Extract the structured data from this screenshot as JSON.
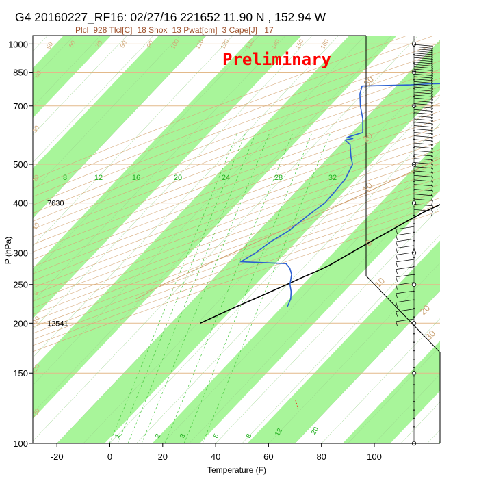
{
  "chart_data": {
    "type": "skew-t",
    "title": "G4 20160227_RF16: 02/27/16 221652  11.90 N , 152.94 W",
    "subtitle": "Plcl=928 Tlcl[C]=18 Shox=13 Pwat[cm]=3 Cape[J]= 17",
    "watermark": "Preliminary",
    "xlabel": "Temperature (F)",
    "ylabel": "P (hPa)",
    "x_ticks": [
      -20,
      0,
      20,
      40,
      60,
      80,
      100
    ],
    "x_tick_labels": [
      "-20",
      "0",
      "20",
      "40",
      "60",
      "80",
      "100"
    ],
    "xlim": [
      -28,
      105
    ],
    "y_ticks": [
      100,
      150,
      200,
      250,
      300,
      400,
      500,
      700,
      850,
      1000
    ],
    "y_tick_labels": [
      "100",
      "150",
      "200",
      "250",
      "300",
      "400",
      "500",
      "700",
      "850",
      "1000"
    ],
    "ylim": [
      1050,
      100
    ],
    "y_scale": "log",
    "height_annotations": [
      {
        "pressure": 200,
        "label": "12541"
      },
      {
        "pressure": 400,
        "label": "7630"
      }
    ],
    "green_labels": [
      "8",
      "12",
      "16",
      "20",
      "24",
      "28",
      "32"
    ],
    "mixing_ratio_labels": [
      "1",
      "2",
      "3",
      "5",
      "8",
      "12",
      "20"
    ],
    "right_axis_labels": [
      "30",
      "20",
      "10",
      "0",
      "10",
      "20",
      "30"
    ],
    "dry_adiabat_labels": [
      "50",
      "60",
      "70",
      "80",
      "90",
      "100",
      "110",
      "120",
      "130",
      "140",
      "150",
      "160",
      "40",
      "30",
      "20",
      "10",
      "0",
      "-10",
      "-20",
      "-30"
    ],
    "series": [
      {
        "name": "",
        "color": "#000000",
        "points": [
          [
            1000,
            80
          ],
          [
            980,
            77.5
          ],
          [
            960,
            74
          ],
          [
            940,
            73
          ],
          [
            920,
            75
          ],
          [
            900,
            77.2
          ],
          [
            880,
            78.5
          ],
          [
            860,
            79
          ],
          [
            840,
            80
          ],
          [
            820,
            80.5
          ],
          [
            800,
            81
          ],
          [
            780,
            79.5
          ],
          [
            760,
            78.5
          ],
          [
            740,
            77.3
          ],
          [
            720,
            76.3
          ],
          [
            700,
            75.1
          ],
          [
            680,
            72
          ],
          [
            660,
            70.6
          ],
          [
            640,
            69.3
          ],
          [
            620,
            68
          ],
          [
            600,
            66.2
          ],
          [
            580,
            64.4
          ],
          [
            560,
            62.8
          ],
          [
            540,
            60.8
          ],
          [
            520,
            58.8
          ],
          [
            500,
            56.5
          ],
          [
            480,
            53.3
          ],
          [
            460,
            50
          ],
          [
            440,
            46.4
          ],
          [
            420,
            42.8
          ],
          [
            400,
            39.8
          ],
          [
            380,
            35.8
          ],
          [
            360,
            32.5
          ],
          [
            340,
            29.5
          ],
          [
            320,
            26.1
          ],
          [
            300,
            22.7
          ],
          [
            290,
            21
          ],
          [
            280,
            19.2
          ],
          [
            270,
            16.5
          ],
          [
            260,
            13
          ],
          [
            250,
            9.9
          ],
          [
            240,
            6.3
          ],
          [
            230,
            2.7
          ],
          [
            220,
            -1.3
          ],
          [
            210,
            -5
          ],
          [
            200,
            -9
          ]
        ]
      },
      {
        "name": "",
        "color": "#2a5fd0",
        "points": [
          [
            1000,
            73
          ],
          [
            990,
            73.5
          ],
          [
            980,
            72
          ],
          [
            970,
            70.3
          ],
          [
            960,
            69.6
          ],
          [
            950,
            70
          ],
          [
            940,
            69.5
          ],
          [
            930,
            68
          ],
          [
            920,
            64.8
          ],
          [
            910,
            63
          ],
          [
            900,
            65
          ],
          [
            890,
            65
          ],
          [
            880,
            66.2
          ],
          [
            870,
            65
          ],
          [
            860,
            64
          ],
          [
            850,
            62.3
          ],
          [
            840,
            61.5
          ],
          [
            830,
            60.7
          ],
          [
            820,
            59.7
          ],
          [
            810,
            58.9
          ],
          [
            805,
            50
          ],
          [
            795,
            -8
          ],
          [
            790,
            -15
          ],
          [
            785,
            -33
          ],
          [
            750,
            -31
          ],
          [
            700,
            -26.5
          ],
          [
            650,
            -21
          ],
          [
            600,
            -16
          ],
          [
            585,
            -20
          ],
          [
            580,
            -17.5
          ],
          [
            575,
            -20
          ],
          [
            560,
            -16.5
          ],
          [
            520,
            -11.5
          ],
          [
            500,
            -8.5
          ],
          [
            460,
            -6
          ],
          [
            420,
            -5.3
          ],
          [
            400,
            -5.1
          ],
          [
            370,
            -7.1
          ],
          [
            340,
            -8.8
          ],
          [
            320,
            -11.6
          ],
          [
            300,
            -13.3
          ],
          [
            290,
            -14.9
          ],
          [
            285,
            -15.6
          ],
          [
            282,
            2
          ],
          [
            275,
            5
          ],
          [
            265,
            8
          ],
          [
            250,
            11
          ],
          [
            240,
            14
          ],
          [
            230,
            16.5
          ],
          [
            220,
            18
          ]
        ]
      }
    ]
  }
}
